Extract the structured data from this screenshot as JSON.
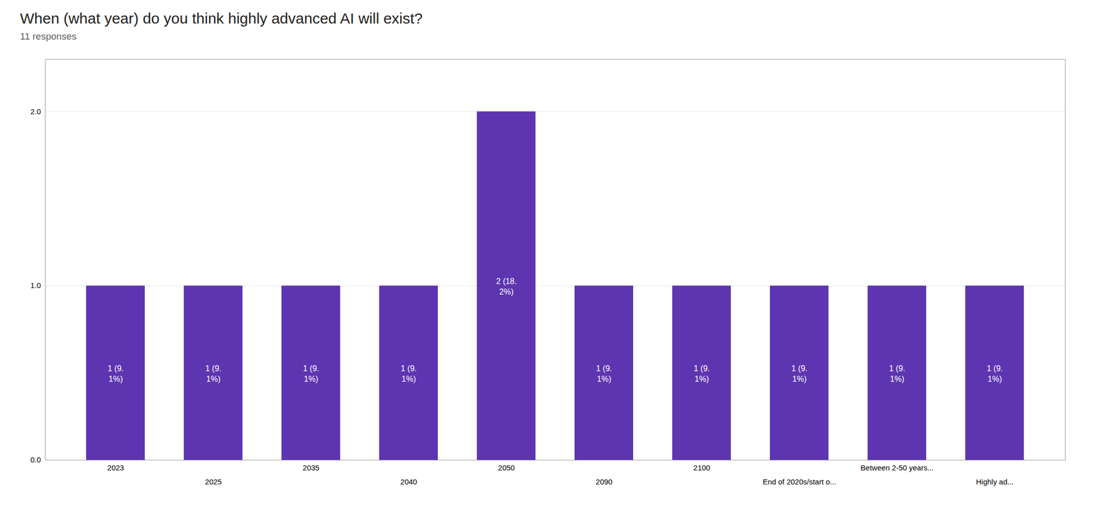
{
  "chart_data": {
    "type": "bar",
    "title": "When (what year) do you think highly advanced AI will exist?",
    "subtitle": "11 responses",
    "categories": [
      "2023",
      "2025",
      "2035",
      "2040",
      "2050",
      "2090",
      "2100",
      "End of 2020s/start o...",
      "Between 2-50 years...",
      "Highly ad..."
    ],
    "values": [
      1,
      1,
      1,
      1,
      2,
      1,
      1,
      1,
      1,
      1
    ],
    "value_labels": [
      "1 (9.\n1%)",
      "1 (9.\n1%)",
      "1 (9.\n1%)",
      "1 (9.\n1%)",
      "2 (18.\n2%)",
      "1 (9.\n1%)",
      "1 (9.\n1%)",
      "1 (9.\n1%)",
      "1 (9.\n1%)",
      "1 (9.\n1%)"
    ],
    "data_labels": true,
    "color": "#5e35b1",
    "ylim": [
      0,
      2.3
    ],
    "yticks": [
      0,
      1,
      2
    ],
    "grid": true
  }
}
